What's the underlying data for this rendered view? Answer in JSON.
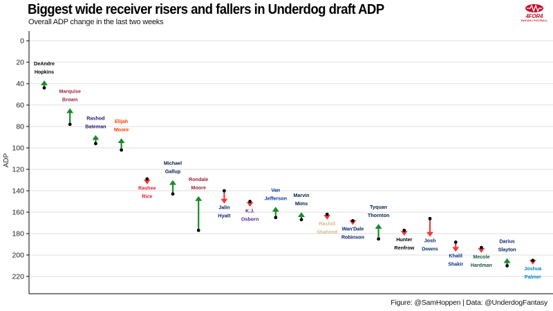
{
  "title": "Biggest wide receiver risers and fallers in Underdog draft ADP",
  "subtitle": "Overall ADP change in the last two weeks",
  "caption": "Figure: @SamHoppen | Data: @UnderdogFantasy",
  "logo": {
    "name": "4FOR4",
    "tagline": "FANTASY FOOTBALL",
    "color": "#c4142c"
  },
  "colors": {
    "riser": "#1b8a2a",
    "faller": "#f23a3a",
    "dot": "#000000",
    "grid": "#dcdcdc"
  },
  "chart_data": {
    "type": "arrow-dot",
    "ylabel": "ADP",
    "ylim": [
      0,
      236
    ],
    "y_reversed": true,
    "yticks": [
      0,
      20,
      40,
      60,
      80,
      100,
      120,
      140,
      160,
      180,
      200,
      220
    ],
    "grid": true,
    "players": [
      {
        "first": "DeAndre",
        "last": "Hopkins",
        "old_adp": 44,
        "new_adp": 37,
        "color": "#000000"
      },
      {
        "first": "Marquise",
        "last": "Brown",
        "old_adp": 78,
        "new_adp": 63,
        "color": "#97233f"
      },
      {
        "first": "Rashod",
        "last": "Bateman",
        "old_adp": 96,
        "new_adp": 88,
        "color": "#241773"
      },
      {
        "first": "Elijah",
        "last": "Moore",
        "old_adp": 102,
        "new_adp": 91,
        "color": "#ff3c00"
      },
      {
        "first": "Rashee",
        "last": "Rice",
        "old_adp": 129,
        "new_adp": 134,
        "color": "#e31837"
      },
      {
        "first": "Michael",
        "last": "Gallup",
        "old_adp": 143,
        "new_adp": 130,
        "color": "#041e42"
      },
      {
        "first": "Rondale",
        "last": "Moore",
        "old_adp": 177,
        "new_adp": 145,
        "color": "#97233f"
      },
      {
        "first": "Jalin",
        "last": "Hyatt",
        "old_adp": 140,
        "new_adp": 152,
        "color": "#0b2265"
      },
      {
        "first": "K.J.",
        "last": "Osborn",
        "old_adp": 150,
        "new_adp": 155,
        "color": "#4f2683"
      },
      {
        "first": "Van",
        "last": "Jefferson",
        "old_adp": 165,
        "new_adp": 155,
        "color": "#003594"
      },
      {
        "first": "Marvin",
        "last": "Mims",
        "old_adp": 167,
        "new_adp": 160,
        "color": "#002244"
      },
      {
        "first": "Rashid",
        "last": "Shaheed",
        "old_adp": 162,
        "new_adp": 167,
        "color": "#d3bc8d"
      },
      {
        "first": "Wan'Dale",
        "last": "Robinson",
        "old_adp": 168,
        "new_adp": 172,
        "color": "#0b2265"
      },
      {
        "first": "Tyquan",
        "last": "Thornton",
        "old_adp": 185,
        "new_adp": 171,
        "color": "#002244"
      },
      {
        "first": "Hunter",
        "last": "Renfrow",
        "old_adp": 177,
        "new_adp": 182,
        "color": "#000000"
      },
      {
        "first": "Josh",
        "last": "Downs",
        "old_adp": 166,
        "new_adp": 183,
        "color": "#002c5f"
      },
      {
        "first": "Khalil",
        "last": "Shakir",
        "old_adp": 188,
        "new_adp": 197,
        "color": "#00338d"
      },
      {
        "first": "Mecole",
        "last": "Hardman",
        "old_adp": 193,
        "new_adp": 198,
        "color": "#125740"
      },
      {
        "first": "Darius",
        "last": "Slayton",
        "old_adp": 210,
        "new_adp": 203,
        "color": "#0b2265"
      },
      {
        "first": "Joshua",
        "last": "Palmer",
        "old_adp": 205,
        "new_adp": 209,
        "color": "#0080c6"
      }
    ]
  }
}
